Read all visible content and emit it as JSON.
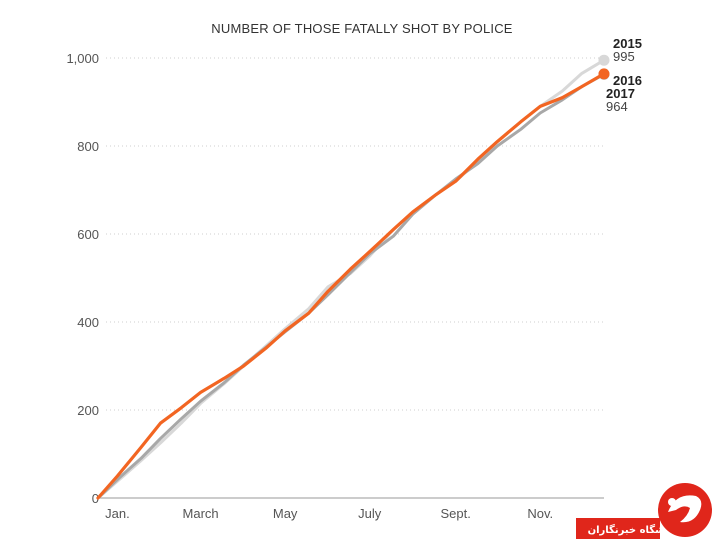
{
  "chart_data": {
    "type": "line",
    "title": "NUMBER OF THOSE FATALLY SHOT BY POLICE",
    "xlabel": "",
    "ylabel": "",
    "x_domain": [
      "2000-01-01",
      "2000-12-31"
    ],
    "ylim": [
      0,
      1000
    ],
    "y_ticks": [
      {
        "value": 0,
        "label": "0"
      },
      {
        "value": 200,
        "label": "200"
      },
      {
        "value": 400,
        "label": "400"
      },
      {
        "value": 600,
        "label": "600"
      },
      {
        "value": 800,
        "label": "800"
      },
      {
        "value": 1000,
        "label": "1,000"
      }
    ],
    "x_ticks": [
      {
        "date": "2000-01-15",
        "label": "Jan."
      },
      {
        "date": "2000-03-15",
        "label": "March"
      },
      {
        "date": "2000-05-15",
        "label": "May"
      },
      {
        "date": "2000-07-15",
        "label": "July"
      },
      {
        "date": "2000-09-15",
        "label": "Sept."
      },
      {
        "date": "2000-11-15",
        "label": "Nov."
      }
    ],
    "grid": true,
    "series": [
      {
        "name": "2015",
        "color": "#d8d8d8",
        "end_label": "995",
        "x": [
          "2000-01-01",
          "2000-01-15",
          "2000-02-01",
          "2000-02-15",
          "2000-03-01",
          "2000-03-15",
          "2000-04-01",
          "2000-04-15",
          "2000-05-01",
          "2000-05-15",
          "2000-06-01",
          "2000-06-15",
          "2000-07-01",
          "2000-07-15",
          "2000-08-01",
          "2000-08-15",
          "2000-09-01",
          "2000-09-15",
          "2000-10-01",
          "2000-10-15",
          "2000-11-01",
          "2000-11-15",
          "2000-12-01",
          "2000-12-15",
          "2000-12-31"
        ],
        "values": [
          0,
          38,
          85,
          125,
          170,
          215,
          260,
          300,
          345,
          385,
          430,
          480,
          510,
          550,
          610,
          650,
          690,
          720,
          765,
          810,
          855,
          890,
          925,
          965,
          995
        ]
      },
      {
        "name": "2016",
        "color": "#a8a8a8",
        "end_label": "",
        "x": [
          "2000-01-01",
          "2000-01-15",
          "2000-02-01",
          "2000-02-15",
          "2000-03-01",
          "2000-03-15",
          "2000-04-01",
          "2000-04-15",
          "2000-05-01",
          "2000-05-15",
          "2000-06-01",
          "2000-06-15",
          "2000-07-01",
          "2000-07-15",
          "2000-08-01",
          "2000-08-15",
          "2000-09-01",
          "2000-09-15",
          "2000-10-01",
          "2000-10-15",
          "2000-11-01",
          "2000-11-15",
          "2000-12-01",
          "2000-12-15",
          "2000-12-31"
        ],
        "values": [
          0,
          42,
          90,
          135,
          180,
          220,
          262,
          302,
          342,
          378,
          420,
          462,
          512,
          555,
          595,
          645,
          690,
          725,
          760,
          800,
          838,
          875,
          905,
          935,
          963
        ]
      },
      {
        "name": "2017",
        "color": "#f26522",
        "end_label": "964",
        "x": [
          "2000-01-01",
          "2000-01-15",
          "2000-02-01",
          "2000-02-15",
          "2000-03-01",
          "2000-03-15",
          "2000-04-01",
          "2000-04-15",
          "2000-05-01",
          "2000-05-15",
          "2000-06-01",
          "2000-06-15",
          "2000-07-01",
          "2000-07-15",
          "2000-08-01",
          "2000-08-15",
          "2000-09-01",
          "2000-09-15",
          "2000-10-01",
          "2000-10-15",
          "2000-11-01",
          "2000-11-15",
          "2000-12-01",
          "2000-12-15",
          "2000-12-31"
        ],
        "values": [
          0,
          50,
          115,
          170,
          205,
          240,
          272,
          300,
          340,
          380,
          420,
          470,
          520,
          560,
          610,
          650,
          690,
          720,
          770,
          810,
          855,
          890,
          910,
          935,
          964
        ]
      }
    ]
  },
  "watermark": {
    "text": "باشگاه خبرنگاران",
    "color": "#e0261b",
    "icon": "news-agency-logo-icon"
  }
}
